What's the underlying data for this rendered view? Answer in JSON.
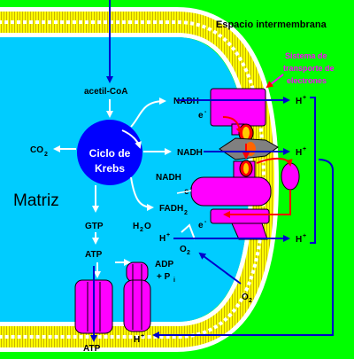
{
  "labels": {
    "intermembrane_space": "Espacio intermembrana",
    "etc_line1": "Sistema de",
    "etc_line2": "transporte de",
    "etc_line3": "electrones",
    "matrix": "Matriz",
    "krebs_line1": "Ciclo de",
    "krebs_line2": "Krebs",
    "acetyl_coa": "acetil-CoA",
    "co2": "CO",
    "co2_sub": "2",
    "nadh_1": "NADH",
    "nadh_2": "NADH",
    "nadh_3": "NADH",
    "fadh2": "FADH",
    "fadh2_sub": "2",
    "gtp": "GTP",
    "atp_mid": "ATP",
    "atp_bottom": "ATP",
    "h2o": "H",
    "h2o_sub": "2",
    "h2o_tail": "O",
    "o2_inner": "O",
    "o2_inner_sub": "2",
    "o2_outer": "O",
    "o2_outer_sub": "2",
    "adp": "ADP",
    "pi_main": "+ P",
    "pi_sub": "i",
    "electron_1": "e",
    "electron_2": "e",
    "electron_3": "e",
    "electron_sup": "-",
    "proton_1": "H",
    "proton_2": "H",
    "proton_3": "H",
    "proton_4": "H",
    "proton_5": "H",
    "proton_sup": "+"
  },
  "colors": {
    "background": "#00ff00",
    "matrix": "#00ccff",
    "membrane_tails": "#ffff00",
    "membrane_heads": "#ffffff",
    "krebs_circle": "#0000ff",
    "protein": "#ff00ff",
    "electron_path": "#ff0000",
    "proton_arrows": "#0000cc",
    "text": "#000000",
    "etc_label": "#ff00ff"
  }
}
